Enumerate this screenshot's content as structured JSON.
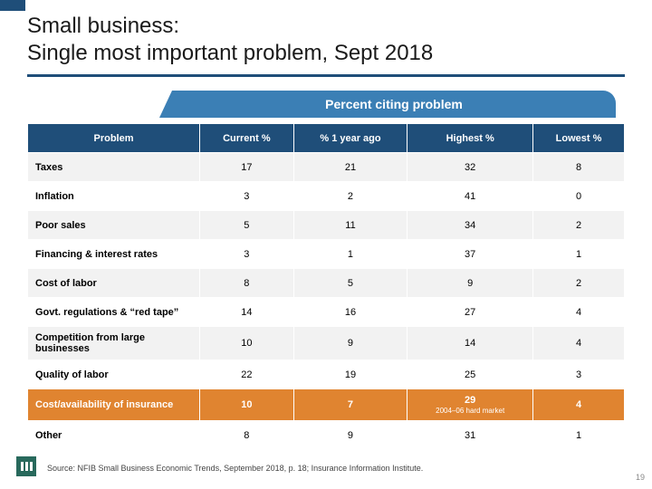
{
  "title_line1": "Small business:",
  "title_line2": "Single most important problem, Sept 2018",
  "banner": "Percent citing problem",
  "columns": [
    "Problem",
    "Current %",
    "% 1 year ago",
    "Highest %",
    "Lowest %"
  ],
  "highlight_row_index": 8,
  "highlight_note": "2004–06 hard market",
  "rows": [
    {
      "label": "Taxes",
      "vals": [
        "17",
        "21",
        "32",
        "8"
      ]
    },
    {
      "label": "Inflation",
      "vals": [
        "3",
        "2",
        "41",
        "0"
      ]
    },
    {
      "label": "Poor sales",
      "vals": [
        "5",
        "11",
        "34",
        "2"
      ]
    },
    {
      "label": "Financing & interest rates",
      "vals": [
        "3",
        "1",
        "37",
        "1"
      ]
    },
    {
      "label": "Cost of labor",
      "vals": [
        "8",
        "5",
        "9",
        "2"
      ]
    },
    {
      "label": "Govt. regulations & “red tape”",
      "vals": [
        "14",
        "16",
        "27",
        "4"
      ]
    },
    {
      "label": "Competition from large businesses",
      "vals": [
        "10",
        "9",
        "14",
        "4"
      ]
    },
    {
      "label": "Quality of labor",
      "vals": [
        "22",
        "19",
        "25",
        "3"
      ]
    },
    {
      "label": "Cost/availability of insurance",
      "vals": [
        "10",
        "7",
        "29",
        "4"
      ]
    },
    {
      "label": "Other",
      "vals": [
        "8",
        "9",
        "31",
        "1"
      ]
    }
  ],
  "source": "Source: NFIB Small Business Economic Trends, September 2018, p. 18; Insurance Information Institute.",
  "page_number": "19",
  "colors": {
    "header_bg": "#1f4e79",
    "banner_bg": "#3b7fb5",
    "highlight_bg": "#e08430",
    "stripe_bg": "#f2f2f2",
    "logo_bg": "#28695c"
  }
}
